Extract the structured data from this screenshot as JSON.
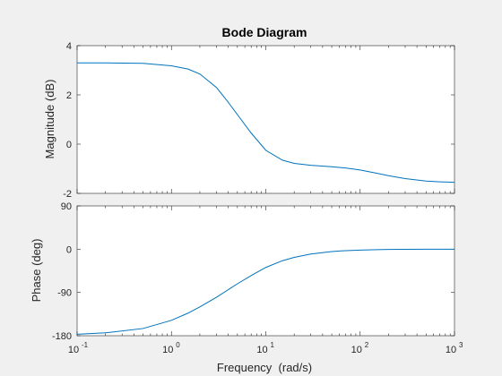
{
  "chart_data": {
    "type": "line",
    "title": "Bode Diagram",
    "xlabel": "Frequency  (rad/s)",
    "x_scale": "log",
    "xlim": [
      0.1,
      1000
    ],
    "x_tick_labels": [
      {
        "base": "10",
        "exp": "-1"
      },
      {
        "base": "10",
        "exp": "0"
      },
      {
        "base": "10",
        "exp": "1"
      },
      {
        "base": "10",
        "exp": "2"
      },
      {
        "base": "10",
        "exp": "3"
      }
    ],
    "line_color": "#0072bd",
    "grid": false,
    "panels": [
      {
        "name": "magnitude",
        "ylabel": "Magnitude (dB)",
        "ylim": [
          -2,
          4
        ],
        "yticks": [
          -2,
          0,
          2,
          4
        ],
        "x": [
          0.1,
          0.2,
          0.5,
          1,
          1.5,
          2,
          3,
          4,
          5,
          7,
          10,
          15,
          20,
          30,
          50,
          70,
          100,
          150,
          200,
          300,
          500,
          700,
          1000
        ],
        "y": [
          3.3,
          3.3,
          3.28,
          3.18,
          3.05,
          2.85,
          2.3,
          1.7,
          1.2,
          0.45,
          -0.25,
          -0.65,
          -0.78,
          -0.86,
          -0.92,
          -0.97,
          -1.05,
          -1.18,
          -1.28,
          -1.4,
          -1.5,
          -1.53,
          -1.55
        ]
      },
      {
        "name": "phase",
        "ylabel": "Phase (deg)",
        "ylim": [
          -180,
          90
        ],
        "yticks": [
          -180,
          -90,
          0,
          90
        ],
        "x": [
          0.1,
          0.2,
          0.5,
          1,
          1.5,
          2,
          3,
          5,
          7,
          10,
          15,
          20,
          30,
          50,
          70,
          100,
          150,
          200,
          300,
          500,
          1000
        ],
        "y": [
          -177,
          -174,
          -165,
          -148,
          -133,
          -120,
          -100,
          -72,
          -55,
          -38,
          -24,
          -17,
          -10,
          -5,
          -3,
          -2,
          -1,
          -0.5,
          -0.3,
          -0.1,
          0
        ]
      }
    ]
  }
}
